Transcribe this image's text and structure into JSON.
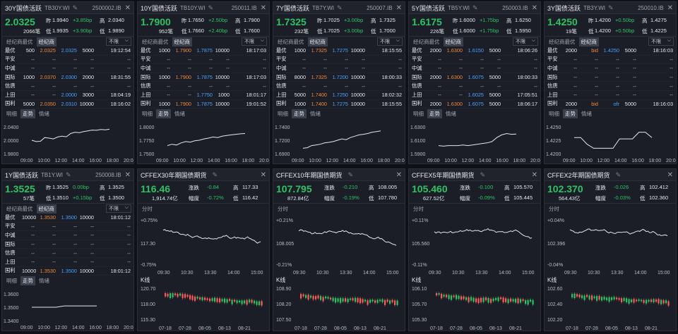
{
  "bonds": [
    {
      "name": "30Y国债活跃",
      "sub": "TB30Y.WI",
      "code": "2500002.IB",
      "price": "2.0325",
      "zuo": "1.9940",
      "chg1": "+3.85bp",
      "gao": "2.0340",
      "vol": "2066笔",
      "di": "1.9935",
      "chg2": "+3.90bp",
      "di2": "1.9890",
      "rows": [
        [
          "最优",
          "500",
          "2.0325",
          "2.0325",
          "5000",
          "19:12:54"
        ],
        [
          "平安",
          "",
          "",
          "",
          "",
          ""
        ],
        [
          "中诚",
          "",
          "",
          "",
          "",
          ""
        ],
        [
          "国际",
          "1000",
          "2.0370",
          "2.0300",
          "2000",
          "18:31:55"
        ],
        [
          "信唐",
          "",
          "",
          "",
          "",
          ""
        ],
        [
          "上田",
          "",
          "",
          "2.0000",
          "3000",
          "18:04:19"
        ],
        [
          "国利",
          "5000",
          "2.0350",
          "2.0310",
          "10000",
          "18:16:02"
        ]
      ],
      "ylabels": [
        "2.0400",
        "2.0000",
        "1.9800"
      ],
      "xlabels": [
        "09:00",
        "10:00",
        "12:00",
        "14:00",
        "16:00",
        "18:00",
        "20:00"
      ],
      "line": [
        0.5,
        0.45,
        0.46,
        0.6,
        0.58,
        0.55,
        0.62,
        0.65,
        0.63,
        0.75,
        0.8,
        0.78,
        0.82,
        0.85,
        0.88,
        0.87,
        0.9,
        0.89,
        0.91
      ]
    },
    {
      "name": "10Y国债活跃",
      "sub": "TB10Y.WI",
      "code": "250011.IB",
      "price": "1.7900",
      "zuo": "1.7650",
      "chg1": "+2.50bp",
      "gao": "1.7900",
      "vol": "952笔",
      "di": "1.7660",
      "chg2": "+2.40bp",
      "di2": "1.7600",
      "rows": [
        [
          "最优",
          "1000",
          "1.7900",
          "1.7875",
          "10000",
          "18:17:03"
        ],
        [
          "平安",
          "",
          "",
          "",
          "",
          ""
        ],
        [
          "中诚",
          "",
          "",
          "",
          "",
          ""
        ],
        [
          "国际",
          "1000",
          "1.7900",
          "1.7875",
          "10000",
          "18:17:03"
        ],
        [
          "信唐",
          "",
          "",
          "",
          "",
          ""
        ],
        [
          "上田",
          "",
          "",
          "1.7750",
          "1000",
          "18:01:17"
        ],
        [
          "国利",
          "1000",
          "1.7900",
          "1.7875",
          "10000",
          "19:01:52"
        ]
      ],
      "ylabels": [
        "1.8000",
        "1.7750",
        "1.7500"
      ],
      "xlabels": [
        "09:00",
        "10:00",
        "12:00",
        "14:00",
        "16:00",
        "18:00",
        "20:00"
      ],
      "line": [
        0.3,
        0.35,
        0.32,
        0.4,
        0.45,
        0.43,
        0.48,
        0.5,
        0.55,
        0.58,
        0.62,
        0.6,
        0.65,
        0.68,
        0.7,
        0.72,
        0.74,
        0.75
      ]
    },
    {
      "name": "7Y国债活跃",
      "sub": "TB7Y.WI",
      "code": "250007.IB",
      "price": "1.7325",
      "zuo": "1.7025",
      "chg1": "+3.00bp",
      "gao": "1.7325",
      "vol": "232笔",
      "di": "1.7025",
      "chg2": "+3.00bp",
      "di2": "1.7000",
      "rows": [
        [
          "最优",
          "1000",
          "1.7325",
          "1.7275",
          "10000",
          "18:15:55"
        ],
        [
          "平安",
          "",
          "",
          "",
          "",
          ""
        ],
        [
          "中诚",
          "",
          "",
          "",
          "",
          ""
        ],
        [
          "国际",
          "8000",
          "1.7325",
          "1.7200",
          "10000",
          "18:00:33"
        ],
        [
          "信唐",
          "",
          "",
          "",
          "",
          ""
        ],
        [
          "上田",
          "5000",
          "1.7400",
          "1.7250",
          "10000",
          "18:02:32"
        ],
        [
          "国利",
          "1000",
          "1.7400",
          "1.7275",
          "10000",
          "18:15:55"
        ]
      ],
      "ylabels": [
        "1.7400",
        "1.7200",
        "1.6900"
      ],
      "xlabels": [
        "09:00",
        "10:00",
        "12:00",
        "14:00",
        "16:00",
        "18:00",
        "20:00"
      ],
      "line": [
        0.2,
        0.22,
        0.3,
        0.32,
        0.35,
        0.4,
        0.42,
        0.45,
        0.5,
        0.55,
        0.52,
        0.6,
        0.65,
        0.7,
        0.72,
        0.75,
        0.8,
        0.82,
        0.85
      ]
    },
    {
      "name": "5Y国债活跃",
      "sub": "TB5Y.WI",
      "code": "250003.IB",
      "price": "1.6175",
      "zuo": "1.6000",
      "chg1": "+1.75bp",
      "gao": "1.6250",
      "vol": "226笔",
      "di": "1.6000",
      "chg2": "+1.75bp",
      "di2": "1.5950",
      "rows": [
        [
          "最优",
          "2000",
          "1.6300",
          "1.6150",
          "5000",
          "18:06:26"
        ],
        [
          "平安",
          "",
          "",
          "",
          "",
          ""
        ],
        [
          "中诚",
          "",
          "",
          "",
          "",
          ""
        ],
        [
          "国际",
          "2000",
          "1.6300",
          "1.6075",
          "5000",
          "18:00:33"
        ],
        [
          "信唐",
          "",
          "",
          "",
          "",
          ""
        ],
        [
          "上田",
          "",
          "",
          "1.6025",
          "5000",
          "17:05:51"
        ],
        [
          "国利",
          "2000",
          "1.6300",
          "1.6075",
          "5000",
          "18:06:17"
        ]
      ],
      "ylabels": [
        "1.6300",
        "1.6100",
        "1.5900"
      ],
      "xlabels": [
        "09:00",
        "10:00",
        "12:00",
        "14:00",
        "16:00",
        "18:00",
        "20:00"
      ],
      "line": [
        0.3,
        0.28,
        0.3,
        0.3,
        0.3,
        0.32,
        0.3,
        0.32,
        0.35,
        0.38,
        0.4,
        0.45,
        0.6,
        0.7,
        0.75,
        0.72,
        0.73
      ]
    },
    {
      "name": "3Y国债活跃",
      "sub": "TB3Y.WI",
      "code": "250010.IB",
      "price": "1.4250",
      "zuo": "1.4200",
      "chg1": "+0.50bp",
      "gao": "1.4275",
      "vol": "19笔",
      "di": "1.4200",
      "chg2": "+0.50bp",
      "di2": "1.4225",
      "rows": [
        [
          "最优",
          "2000",
          "bid",
          "1.4250",
          "5000",
          "18:16:03"
        ],
        [
          "平安",
          "",
          "",
          "",
          "",
          ""
        ],
        [
          "中诚",
          "",
          "",
          "",
          "",
          ""
        ],
        [
          "国际",
          "",
          "",
          "",
          "",
          ""
        ],
        [
          "信唐",
          "",
          "",
          "",
          "",
          ""
        ],
        [
          "上田",
          "",
          "",
          "",
          "",
          ""
        ],
        [
          "国利",
          "2000",
          "bid",
          "ofr",
          "5000",
          "18:16:03"
        ]
      ],
      "ylabels": [
        "1.4250",
        "1.4225",
        "1.4200"
      ],
      "xlabels": [
        "09:00",
        "10:00",
        "12:00",
        "14:00",
        "16:00",
        "18:00",
        "20:00"
      ],
      "line": [
        0.6,
        0.6,
        0.35,
        0.2,
        0.2,
        0.2,
        0.2,
        0.55,
        0.55,
        0.55,
        0.8,
        0.8,
        0.6
      ]
    },
    {
      "name": "1Y国债活跃",
      "sub": "TB1Y.WI",
      "code": "250008.IB",
      "price": "1.3525",
      "zuo": "1.3525",
      "chg1": "0.00bp",
      "gao": "1.3525",
      "vol": "57笔",
      "di": "1.3510",
      "chg2": "+0.15bp",
      "di2": "1.3500",
      "rows": [
        [
          "最优",
          "10000",
          "1.3530",
          "1.3500",
          "10000",
          "18:01:12"
        ],
        [
          "平安",
          "",
          "",
          "",
          "",
          ""
        ],
        [
          "中诚",
          "",
          "",
          "",
          "",
          ""
        ],
        [
          "国际",
          "",
          "",
          "",
          "",
          ""
        ],
        [
          "信唐",
          "",
          "",
          "",
          "",
          ""
        ],
        [
          "上田",
          "",
          "",
          "",
          "",
          ""
        ],
        [
          "国利",
          "10000",
          "1.3530",
          "1.3500",
          "10000",
          "18:01:12"
        ]
      ],
      "ylabels": [
        "1.3600",
        "1.3500",
        "1.3400"
      ],
      "xlabels": [
        "09:00",
        "10:00",
        "12:00",
        "14:00",
        "16:00",
        "18:00",
        "20:00"
      ],
      "line": [
        0.5,
        0.5,
        0.5,
        0.5,
        0.55,
        0.55,
        0.55,
        0.55,
        0.55
      ]
    }
  ],
  "futures": [
    {
      "name": "CFFEX30年期国债期货",
      "price": "116.46",
      "zhangdie": "-0.84",
      "gao": "117.33",
      "amt": "1,914.74亿",
      "fudu": "-0.72%",
      "di": "116.42",
      "pct_top": "+0.75%",
      "pct_bot": "-0.75%",
      "mid": "117.30",
      "kline_y": [
        "120.70",
        "118.00",
        "115.30"
      ],
      "kline_x": [
        "07-18",
        "07-28",
        "08-05",
        "08-13",
        "08-21"
      ]
    },
    {
      "name": "CFFEX10年期国债期货",
      "price": "107.795",
      "zhangdie": "-0.210",
      "gao": "108.005",
      "amt": "872.84亿",
      "fudu": "-0.19%",
      "di": "107.780",
      "pct_top": "+0.21%",
      "pct_bot": "-0.21%",
      "mid": "108.005",
      "kline_y": [
        "108.90",
        "108.20",
        "107.50"
      ],
      "kline_x": [
        "07-18",
        "07-28",
        "08-05",
        "08-13",
        "08-21"
      ]
    },
    {
      "name": "CFFEX5年期国债期货",
      "price": "105.460",
      "zhangdie": "-0.100",
      "gao": "105.570",
      "amt": "627.52亿",
      "fudu": "-0.09%",
      "di": "105.445",
      "pct_top": "+0.11%",
      "pct_bot": "-0.11%",
      "mid": "105.560",
      "kline_y": [
        "106.10",
        "105.70",
        "105.30"
      ],
      "kline_x": [
        "07-18",
        "07-28",
        "08-05",
        "08-13",
        "08-21"
      ]
    },
    {
      "name": "CFFEX2年期国债期货",
      "price": "102.370",
      "zhangdie": "-0.026",
      "gao": "102.412",
      "amt": "564.43亿",
      "fudu": "-0.03%",
      "di": "102.360",
      "pct_top": "+0.04%",
      "pct_bot": "-0.04%",
      "mid": "102.396",
      "kline_y": [
        "102.60",
        "102.40",
        "102.20"
      ],
      "kline_x": [
        "07-18",
        "07-28",
        "08-05",
        "08-13",
        "08-21"
      ]
    }
  ],
  "labels": {
    "zuo": "昨",
    "gao": "高",
    "di": "低",
    "jingji": "经纪商最优",
    "jingjishang": "经纪商",
    "buxian": "不限",
    "mingxi": "明细",
    "zoushi": "走势",
    "qingxu": "情绪",
    "zhangdie": "涨跌",
    "fudu": "幅度",
    "fenshi": "分时",
    "kxian": "K线"
  },
  "colors": {
    "up": "#ff5b5b",
    "down": "#2fc264",
    "accent": "#4aa3ff",
    "bg": "#1b1e26"
  }
}
